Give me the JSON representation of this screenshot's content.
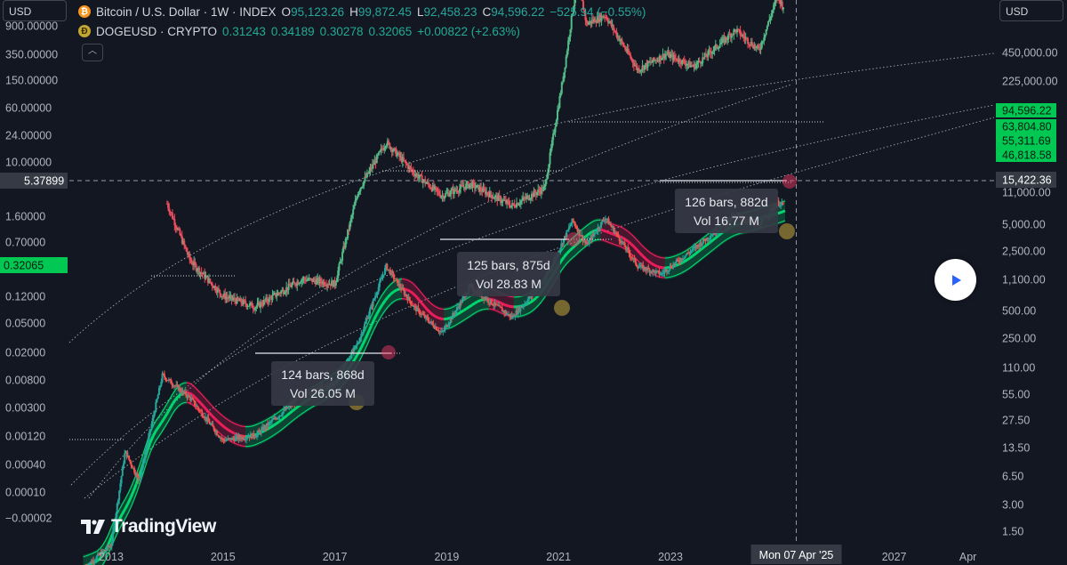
{
  "header": {
    "btc": {
      "icon": "bitcoin-icon",
      "title": "Bitcoin / U.S. Dollar · 1W · INDEX",
      "o_label": "O",
      "o": "95,123.26",
      "h_label": "H",
      "h": "99,872.45",
      "l_label": "L",
      "l": "92,458.23",
      "c_label": "C",
      "c": "94,596.22",
      "change": "−525.94 (−0.55%)"
    },
    "doge": {
      "icon": "dogecoin-icon",
      "title": "DOGEUSD · CRYPTO",
      "o": "0.31243",
      "h": "0.34189",
      "l": "0.30278",
      "c": "0.32065",
      "change": "+0.00822 (+2.63%)"
    }
  },
  "left_currency": "USD",
  "right_currency": "USD",
  "logo_text": "TradingView",
  "crosshair_date": "Mon 07 Apr '25",
  "colors": {
    "background": "#131722",
    "btc_up": "#26a69a",
    "btc_down": "#ef5350",
    "band_green": "#00e676",
    "band_red": "#ff1f5e",
    "doge_up": "#53b987",
    "doge_down": "#eb4d5c",
    "label_green": "#00c853"
  },
  "chart_data": {
    "type": "line",
    "title": "Bitcoin / U.S. Dollar · 1W · INDEX",
    "x_ticks": [
      "2013",
      "2015",
      "2017",
      "2019",
      "2021",
      "2023",
      "2025",
      "2027",
      "Apr"
    ],
    "left_axis": {
      "scale": "log",
      "ticks": [
        "900.00000",
        "350.00000",
        "150.00000",
        "60.00000",
        "24.00000",
        "10.00000",
        "5.37899",
        "1.60000",
        "0.70000",
        "0.32065",
        "0.12000",
        "0.05000",
        "0.02000",
        "0.00800",
        "0.00300",
        "0.00120",
        "0.00040",
        "0.00010",
        "−0.00002"
      ],
      "crosshair_value": "5.37899",
      "last_value": "0.32065"
    },
    "right_axis": {
      "scale": "log",
      "ticks": [
        "450,000.00",
        "225,000.00",
        "94,596.22",
        "63,804.80",
        "55,311.69",
        "46,818.58",
        "15,422.36",
        "11,000.00",
        "5,000.00",
        "2,500.00",
        "1,100.00",
        "500.00",
        "250.00",
        "110.00",
        "55.00",
        "27.50",
        "13.50",
        "6.50",
        "3.00",
        "1.50"
      ],
      "crosshair_value": "15,422.36",
      "last_price": "94,596.22",
      "band_values": [
        "63,804.80",
        "55,311.69",
        "46,818.58"
      ]
    },
    "series": [
      {
        "name": "Bitcoin / U.S. Dollar",
        "x": [
          "2012-07",
          "2013-01",
          "2013-04",
          "2013-07",
          "2013-12",
          "2014-06",
          "2015-01",
          "2015-08",
          "2016-06",
          "2017-01",
          "2017-06",
          "2017-12",
          "2018-06",
          "2018-12",
          "2019-06",
          "2020-03",
          "2020-10",
          "2021-04",
          "2021-07",
          "2021-11",
          "2022-06",
          "2022-11",
          "2023-06",
          "2024-03",
          "2024-08",
          "2024-12",
          "2025-01"
        ],
        "values": [
          7,
          13,
          150,
          70,
          1100,
          600,
          200,
          230,
          650,
          900,
          2600,
          19000,
          6500,
          3300,
          11000,
          5000,
          13000,
          63000,
          33000,
          68000,
          19000,
          15500,
          30000,
          72000,
          55000,
          100000,
          94596.22
        ]
      },
      {
        "name": "DOGEUSD",
        "x": [
          "2014-01",
          "2014-06",
          "2015-01",
          "2015-08",
          "2016-06",
          "2017-01",
          "2017-06",
          "2017-12",
          "2018-06",
          "2018-12",
          "2019-06",
          "2020-03",
          "2020-10",
          "2021-02",
          "2021-05",
          "2021-07",
          "2021-11",
          "2022-06",
          "2022-12",
          "2023-06",
          "2024-03",
          "2024-08",
          "2024-12",
          "2025-01"
        ],
        "values": [
          0.0018,
          0.0004,
          0.00016,
          0.00012,
          0.00025,
          0.00022,
          0.0025,
          0.009,
          0.004,
          0.0022,
          0.003,
          0.0017,
          0.0027,
          0.05,
          0.65,
          0.2,
          0.25,
          0.06,
          0.09,
          0.065,
          0.17,
          0.1,
          0.42,
          0.32065
        ]
      }
    ],
    "annotations": [
      {
        "text_bars": "124 bars, 868d",
        "text_vol": "Vol 26.05 M"
      },
      {
        "text_bars": "125 bars, 875d",
        "text_vol": "Vol 28.83 M"
      },
      {
        "text_bars": "126 bars, 882d",
        "text_vol": "Vol 16.77 M"
      }
    ]
  }
}
